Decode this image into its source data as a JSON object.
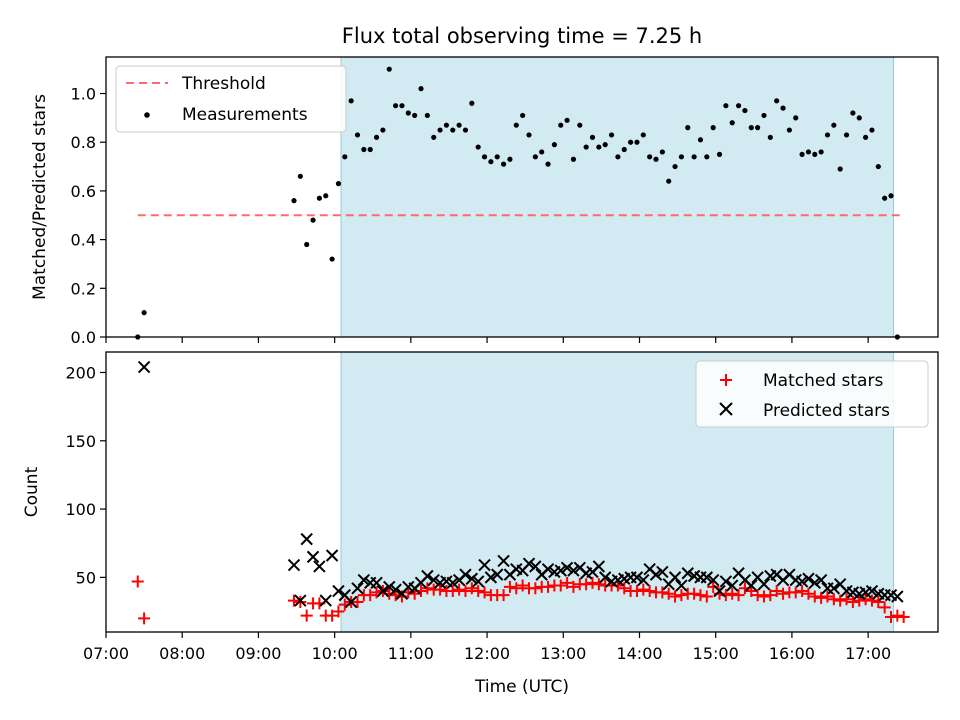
{
  "chart_data": [
    {
      "type": "scatter",
      "title": "Flux total observing time = 7.25 h",
      "xlabel": "",
      "ylabel": "Matched/Predicted stars",
      "xlim": [
        "07:00",
        "17:55"
      ],
      "ylim": [
        0,
        1.15
      ],
      "yticks": [
        "0.0",
        "0.2",
        "0.4",
        "0.6",
        "0.8",
        "1.0"
      ],
      "observing_window": [
        "10:05",
        "17:20"
      ],
      "colors": {
        "window": "#add8e6",
        "threshold": "#ff6b6b",
        "points": "#000000"
      },
      "legend": {
        "position": "top-left",
        "entries": [
          "Threshold",
          "Measurements"
        ]
      },
      "threshold": {
        "name": "Threshold",
        "y": 0.5,
        "x_range": [
          "07:25",
          "17:25"
        ]
      },
      "series": [
        {
          "name": "Measurements",
          "x": [
            "07:25",
            "07:30",
            "09:28",
            "09:33",
            "09:38",
            "09:43",
            "09:48",
            "09:53",
            "09:58",
            "10:03",
            "10:08",
            "10:13",
            "10:18",
            "10:23",
            "10:28",
            "10:33",
            "10:38",
            "10:43",
            "10:48",
            "10:53",
            "10:58",
            "11:03",
            "11:08",
            "11:13",
            "11:18",
            "11:23",
            "11:28",
            "11:33",
            "11:38",
            "11:43",
            "11:48",
            "11:53",
            "11:58",
            "12:03",
            "12:08",
            "12:13",
            "12:18",
            "12:23",
            "12:28",
            "12:33",
            "12:38",
            "12:43",
            "12:48",
            "12:53",
            "12:58",
            "13:03",
            "13:08",
            "13:13",
            "13:18",
            "13:23",
            "13:28",
            "13:33",
            "13:38",
            "13:43",
            "13:48",
            "13:53",
            "13:58",
            "14:03",
            "14:08",
            "14:13",
            "14:18",
            "14:23",
            "14:28",
            "14:33",
            "14:38",
            "14:43",
            "14:48",
            "14:53",
            "14:58",
            "15:03",
            "15:08",
            "15:13",
            "15:18",
            "15:23",
            "15:28",
            "15:33",
            "15:38",
            "15:43",
            "15:48",
            "15:53",
            "15:58",
            "16:03",
            "16:08",
            "16:13",
            "16:18",
            "16:23",
            "16:28",
            "16:33",
            "16:38",
            "16:43",
            "16:48",
            "16:53",
            "16:58",
            "17:03",
            "17:08",
            "17:13",
            "17:18",
            "17:23"
          ],
          "y": [
            0.0,
            0.1,
            0.56,
            0.66,
            0.38,
            0.48,
            0.57,
            0.58,
            0.32,
            0.63,
            0.74,
            0.97,
            0.83,
            0.77,
            0.77,
            0.82,
            0.85,
            1.1,
            0.95,
            0.95,
            0.92,
            0.91,
            1.02,
            0.91,
            0.82,
            0.85,
            0.87,
            0.85,
            0.87,
            0.85,
            0.96,
            0.78,
            0.74,
            0.72,
            0.74,
            0.71,
            0.73,
            0.87,
            0.91,
            0.83,
            0.74,
            0.76,
            0.71,
            0.79,
            0.87,
            0.89,
            0.73,
            0.87,
            0.78,
            0.82,
            0.78,
            0.79,
            0.83,
            0.74,
            0.77,
            0.8,
            0.8,
            0.83,
            0.74,
            0.73,
            0.76,
            0.64,
            0.7,
            0.74,
            0.86,
            0.74,
            0.81,
            0.74,
            0.86,
            0.75,
            0.95,
            0.88,
            0.95,
            0.93,
            0.86,
            0.86,
            0.91,
            0.82,
            0.97,
            0.94,
            0.85,
            0.9,
            0.75,
            0.76,
            0.75,
            0.76,
            0.83,
            0.87,
            0.69,
            0.83,
            0.92,
            0.9,
            0.82,
            0.85,
            0.7,
            0.57,
            0.58,
            0.0
          ]
        }
      ]
    },
    {
      "type": "scatter",
      "title": "",
      "xlabel": "Time (UTC)",
      "ylabel": "Count",
      "xlim": [
        "07:00",
        "17:55"
      ],
      "ylim": [
        10,
        215
      ],
      "xticks": [
        "07:00",
        "08:00",
        "09:00",
        "10:00",
        "11:00",
        "12:00",
        "13:00",
        "14:00",
        "15:00",
        "16:00",
        "17:00"
      ],
      "yticks": [
        "50",
        "100",
        "150",
        "200"
      ],
      "observing_window": [
        "10:05",
        "17:20"
      ],
      "colors": {
        "window": "#add8e6",
        "matched": "#ff0000",
        "predicted": "#000000"
      },
      "legend": {
        "position": "top-right",
        "entries": [
          "Matched stars",
          "Predicted stars"
        ]
      },
      "series": [
        {
          "name": "Matched stars",
          "x": [
            "07:25",
            "07:30",
            "09:28",
            "09:33",
            "09:38",
            "09:43",
            "09:48",
            "09:53",
            "09:58",
            "10:03",
            "10:08",
            "10:13",
            "10:18",
            "10:23",
            "10:28",
            "10:33",
            "10:38",
            "10:43",
            "10:48",
            "10:53",
            "10:58",
            "11:03",
            "11:08",
            "11:13",
            "11:18",
            "11:23",
            "11:28",
            "11:33",
            "11:38",
            "11:43",
            "11:48",
            "11:53",
            "11:58",
            "12:03",
            "12:08",
            "12:13",
            "12:18",
            "12:23",
            "12:28",
            "12:33",
            "12:38",
            "12:43",
            "12:48",
            "12:53",
            "12:58",
            "13:03",
            "13:08",
            "13:13",
            "13:18",
            "13:23",
            "13:28",
            "13:33",
            "13:38",
            "13:43",
            "13:48",
            "13:53",
            "13:58",
            "14:03",
            "14:08",
            "14:13",
            "14:18",
            "14:23",
            "14:28",
            "14:33",
            "14:38",
            "14:43",
            "14:48",
            "14:53",
            "14:58",
            "15:03",
            "15:08",
            "15:13",
            "15:18",
            "15:23",
            "15:28",
            "15:33",
            "15:38",
            "15:43",
            "15:48",
            "15:53",
            "15:58",
            "16:03",
            "16:08",
            "16:13",
            "16:18",
            "16:23",
            "16:28",
            "16:33",
            "16:38",
            "16:43",
            "16:48",
            "16:53",
            "16:58",
            "17:03",
            "17:08",
            "17:13",
            "17:18",
            "17:23",
            "17:28"
          ],
          "y": [
            47,
            20,
            33,
            32,
            22,
            31,
            31,
            22,
            22,
            25,
            30,
            32,
            32,
            37,
            37,
            39,
            40,
            38,
            37,
            36,
            39,
            38,
            40,
            42,
            41,
            41,
            40,
            40,
            41,
            40,
            42,
            40,
            39,
            37,
            37,
            37,
            43,
            42,
            44,
            42,
            42,
            43,
            43,
            44,
            44,
            46,
            43,
            45,
            45,
            46,
            45,
            44,
            44,
            44,
            42,
            40,
            40,
            41,
            40,
            39,
            39,
            38,
            36,
            37,
            38,
            38,
            37,
            36,
            43,
            38,
            37,
            38,
            37,
            42,
            40,
            37,
            36,
            37,
            40,
            38,
            39,
            39,
            40,
            38,
            36,
            35,
            36,
            34,
            33,
            34,
            32,
            33,
            34,
            33,
            32,
            28,
            21,
            22,
            21
          ]
        },
        {
          "name": "Predicted stars",
          "x": [
            "07:30",
            "09:28",
            "09:33",
            "09:38",
            "09:43",
            "09:48",
            "09:53",
            "09:58",
            "10:03",
            "10:08",
            "10:13",
            "10:18",
            "10:23",
            "10:28",
            "10:33",
            "10:38",
            "10:43",
            "10:48",
            "10:53",
            "10:58",
            "11:03",
            "11:08",
            "11:13",
            "11:18",
            "11:23",
            "11:28",
            "11:33",
            "11:38",
            "11:43",
            "11:48",
            "11:53",
            "11:58",
            "12:03",
            "12:08",
            "12:13",
            "12:18",
            "12:23",
            "12:28",
            "12:33",
            "12:38",
            "12:43",
            "12:48",
            "12:53",
            "12:58",
            "13:03",
            "13:08",
            "13:13",
            "13:18",
            "13:23",
            "13:28",
            "13:33",
            "13:38",
            "13:43",
            "13:48",
            "13:53",
            "13:58",
            "14:03",
            "14:08",
            "14:13",
            "14:18",
            "14:23",
            "14:28",
            "14:33",
            "14:38",
            "14:43",
            "14:48",
            "14:53",
            "14:58",
            "15:03",
            "15:08",
            "15:13",
            "15:18",
            "15:23",
            "15:28",
            "15:33",
            "15:38",
            "15:43",
            "15:48",
            "15:53",
            "15:58",
            "16:03",
            "16:08",
            "16:13",
            "16:18",
            "16:23",
            "16:28",
            "16:33",
            "16:38",
            "16:43",
            "16:48",
            "16:53",
            "16:58",
            "17:03",
            "17:08",
            "17:13",
            "17:18",
            "17:23"
          ],
          "y": [
            204,
            59,
            33,
            78,
            65,
            58,
            33,
            66,
            40,
            37,
            32,
            42,
            48,
            46,
            46,
            40,
            43,
            41,
            38,
            43,
            42,
            46,
            51,
            48,
            46,
            47,
            46,
            48,
            52,
            49,
            47,
            59,
            50,
            52,
            62,
            52,
            56,
            55,
            60,
            58,
            52,
            56,
            54,
            55,
            57,
            55,
            57,
            53,
            54,
            58,
            50,
            47,
            48,
            49,
            50,
            50,
            48,
            56,
            52,
            54,
            45,
            50,
            44,
            53,
            51,
            50,
            50,
            48,
            40,
            47,
            44,
            53,
            48,
            44,
            50,
            45,
            51,
            52,
            48,
            52,
            48,
            47,
            49,
            46,
            48,
            42,
            42,
            45,
            40,
            39,
            38,
            39,
            40,
            38,
            37,
            37,
            36
          ]
        }
      ]
    }
  ]
}
